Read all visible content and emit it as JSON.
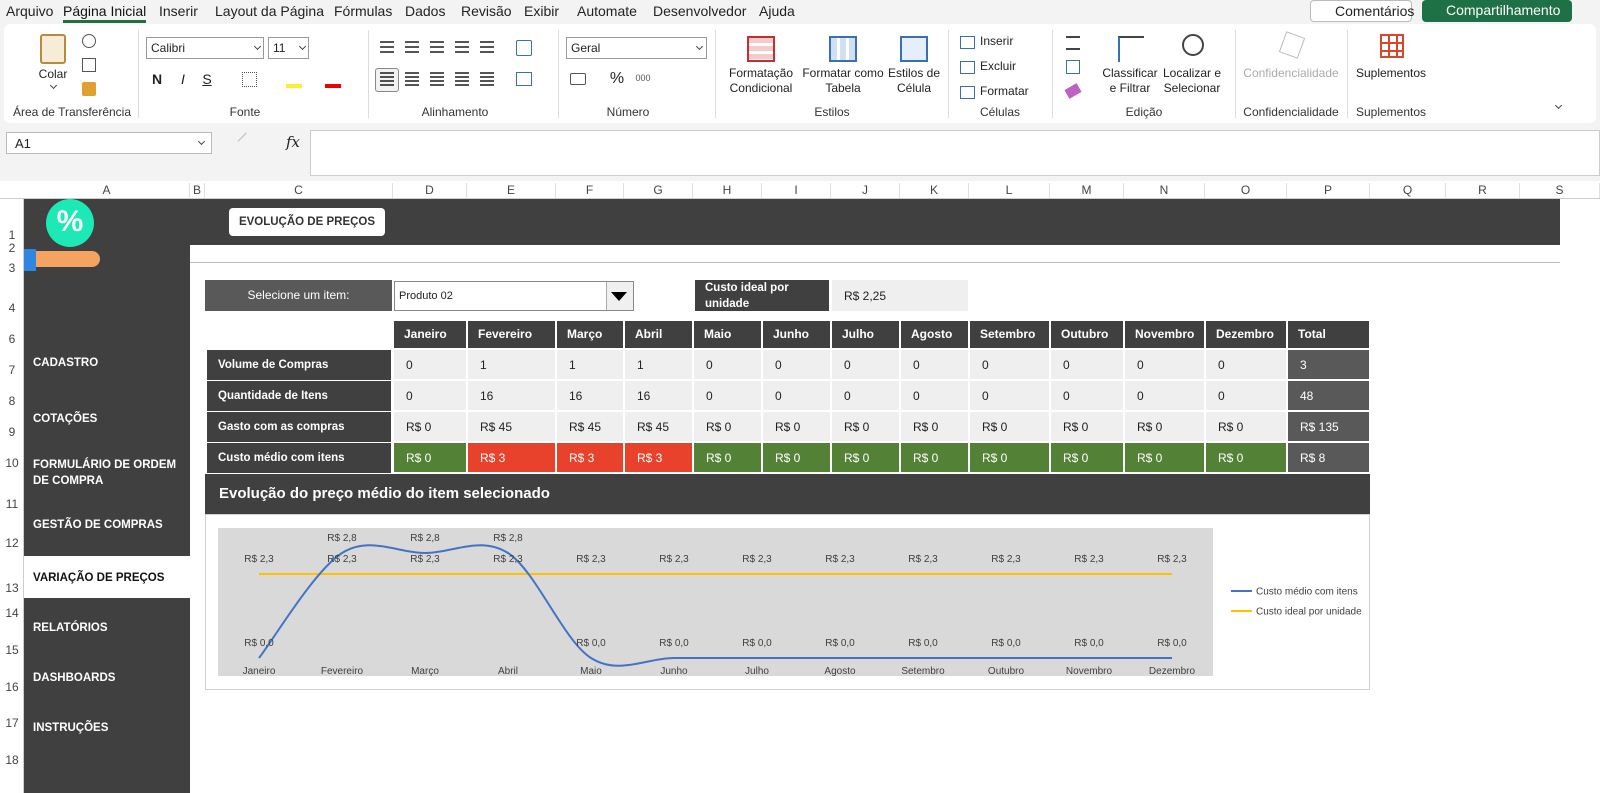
{
  "menu": {
    "tabs": [
      "Arquivo",
      "Página Inicial",
      "Inserir",
      "Layout da Página",
      "Fórmulas",
      "Dados",
      "Revisão",
      "Exibir",
      "Automate",
      "Desenvolvedor",
      "Ajuda"
    ],
    "comments": "Comentários",
    "share": "Compartilhamento"
  },
  "ribbon": {
    "clipboard": {
      "paste": "Colar",
      "label": "Área de Transferência"
    },
    "font": {
      "name": "Calibri",
      "size": "11",
      "buttons": [
        "N",
        "I",
        "S"
      ],
      "label": "Fonte"
    },
    "alignment": {
      "label": "Alinhamento"
    },
    "number": {
      "format": "Geral",
      "buttons": [
        "%",
        "000"
      ],
      "label": "Número"
    },
    "styles": {
      "conditional": [
        "Formatação",
        "Condicional"
      ],
      "table": [
        "Formatar como",
        "Tabela"
      ],
      "cell": [
        "Estilos de",
        "Célula"
      ],
      "label": "Estilos"
    },
    "cells": {
      "insert": "Inserir",
      "delete": "Excluir",
      "format": "Formatar",
      "label": "Células"
    },
    "editing": {
      "sort": [
        "Classificar",
        "e Filtrar"
      ],
      "find": [
        "Localizar e",
        "Selecionar"
      ],
      "label": "Edição"
    },
    "sensitivity": {
      "button": "Confidencialidade",
      "label": "Confidencialidade"
    },
    "addins": {
      "button": "Suplementos",
      "label": "Suplementos"
    }
  },
  "formula_bar": {
    "name_box": "A1",
    "fx": "fx"
  },
  "columns": [
    "A",
    "B",
    "C",
    "D",
    "E",
    "F",
    "G",
    "H",
    "I",
    "J",
    "K",
    "L",
    "M",
    "N",
    "O",
    "P",
    "Q",
    "R",
    "S"
  ],
  "rows": [
    "1",
    "2",
    "3",
    "4",
    "6",
    "7",
    "8",
    "9",
    "10",
    "11",
    "12",
    "13",
    "14",
    "15",
    "16",
    "17",
    "18"
  ],
  "sidebar": {
    "items": [
      "CADASTRO",
      "COTAÇÕES",
      "FORMULÁRIO DE ORDEM DE COMPRA",
      "GESTÃO DE COMPRAS",
      "VARIAÇÃO DE PREÇOS",
      "RELATÓRIOS",
      "DASHBOARDS",
      "INSTRUÇÕES"
    ]
  },
  "sheet": {
    "logo": "%",
    "title": "EVOLUÇÃO DE PREÇOS",
    "select_label": "Selecione um item:",
    "selected": "Produto 02",
    "ideal_label": "Custo ideal por unidade",
    "ideal_value": "R$ 2,25"
  },
  "table": {
    "header": [
      "Janeiro",
      "Fevereiro",
      "Março",
      "Abril",
      "Maio",
      "Junho",
      "Julho",
      "Agosto",
      "Setembro",
      "Outubro",
      "Novembro",
      "Dezembro",
      "Total"
    ],
    "rows": [
      {
        "label": "Volume de Compras",
        "cells": [
          "0",
          "1",
          "1",
          "1",
          "0",
          "0",
          "0",
          "0",
          "0",
          "0",
          "0",
          "0",
          "3"
        ]
      },
      {
        "label": "Quantidade de Itens",
        "cells": [
          "0",
          "16",
          "16",
          "16",
          "0",
          "0",
          "0",
          "0",
          "0",
          "0",
          "0",
          "0",
          "48"
        ]
      },
      {
        "label": "Gasto com as compras",
        "cells": [
          "R$ 0",
          "R$ 45",
          "R$ 45",
          "R$ 45",
          "R$ 0",
          "R$ 0",
          "R$ 0",
          "R$ 0",
          "R$ 0",
          "R$ 0",
          "R$ 0",
          "R$ 0",
          "R$ 135"
        ]
      },
      {
        "label": "Custo médio com itens",
        "cells": [
          "R$ 0",
          "R$ 3",
          "R$ 3",
          "R$ 3",
          "R$ 0",
          "R$ 0",
          "R$ 0",
          "R$ 0",
          "R$ 0",
          "R$ 0",
          "R$ 0",
          "R$ 0",
          "R$ 8"
        ],
        "colors": [
          "#538135",
          "#e8412c",
          "#e8412c",
          "#e8412c",
          "#538135",
          "#538135",
          "#538135",
          "#538135",
          "#538135",
          "#538135",
          "#538135",
          "#538135",
          "#595959"
        ]
      }
    ]
  },
  "chart_data": {
    "type": "line",
    "title": "Evolução do preço médio do item selecionado",
    "smooth": true,
    "categories": [
      "Janeiro",
      "Fevereiro",
      "Março",
      "Abril",
      "Maio",
      "Junho",
      "Julho",
      "Agosto",
      "Setembro",
      "Outubro",
      "Novembro",
      "Dezembro"
    ],
    "series": [
      {
        "name": "Custo médio com itens",
        "color": "#4472c4",
        "values": [
          0,
          2.8125,
          2.8125,
          2.8125,
          0,
          0,
          0,
          0,
          0,
          0,
          0,
          0
        ],
        "value_labels": [
          "R$ 0,0",
          "R$ 2,8",
          "R$ 2,8",
          "R$ 2,8",
          "R$ 0,0",
          "R$ 0,0",
          "R$ 0,0",
          "R$ 0,0",
          "R$ 0,0",
          "R$ 0,0",
          "R$ 0,0",
          "R$ 0,0"
        ]
      },
      {
        "name": "Custo ideal por unidade",
        "color": "#ffc000",
        "values": [
          2.25,
          2.25,
          2.25,
          2.25,
          2.25,
          2.25,
          2.25,
          2.25,
          2.25,
          2.25,
          2.25,
          2.25
        ],
        "value_labels": [
          "R$ 2,3",
          "R$ 2,3",
          "R$ 2,3",
          "R$ 2,3",
          "R$ 2,3",
          "R$ 2,3",
          "R$ 2,3",
          "R$ 2,3",
          "R$ 2,3",
          "R$ 2,3",
          "R$ 2,3",
          "R$ 2,3"
        ]
      }
    ]
  }
}
